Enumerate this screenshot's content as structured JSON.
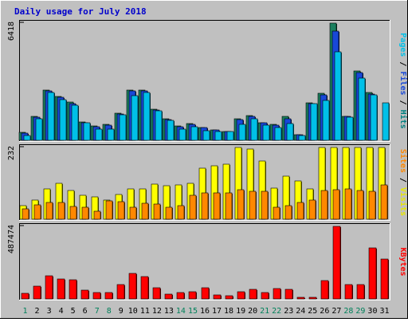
{
  "chart_data": {
    "type": "bar",
    "title": "Daily usage for July 2018",
    "categories": [
      "1",
      "2",
      "3",
      "4",
      "5",
      "6",
      "7",
      "8",
      "9",
      "10",
      "11",
      "12",
      "13",
      "14",
      "15",
      "16",
      "17",
      "18",
      "19",
      "20",
      "21",
      "22",
      "23",
      "24",
      "25",
      "26",
      "27",
      "28",
      "29",
      "30",
      "31"
    ],
    "weekend_days": [
      "1",
      "7",
      "8",
      "14",
      "15",
      "21",
      "22",
      "28",
      "29"
    ],
    "panels": [
      {
        "id": "hits_files_pages",
        "ymax_label": "6418",
        "ylim": [
          0,
          6418
        ],
        "right_label": {
          "parts": [
            "Pages",
            " / ",
            "Files",
            " / ",
            "Hits"
          ],
          "colors": [
            "#00c0e8",
            "#000000",
            "#1848d8",
            "#000000",
            "#008080"
          ]
        },
        "series": [
          {
            "name": "Hits",
            "color": "#1a7f5e",
            "values": [
              420,
              1320,
              2750,
              2400,
              2090,
              1020,
              780,
              870,
              1500,
              2750,
              2760,
              1700,
              1200,
              800,
              920,
              700,
              570,
              500,
              1170,
              1350,
              980,
              890,
              1300,
              300,
              2040,
              2590,
              6400,
              1330,
              3800,
              2620,
              0
            ]
          },
          {
            "name": "Files",
            "color": "#1848d8",
            "values": [
              400,
              1280,
              2700,
              2350,
              2000,
              960,
              740,
              830,
              1460,
              2700,
              2720,
              1650,
              1130,
              760,
              880,
              680,
              550,
              490,
              1120,
              1300,
              950,
              850,
              1200,
              300,
              2000,
              2500,
              6000,
              1300,
              3700,
              2550,
              0
            ]
          },
          {
            "name": "Pages",
            "color": "#00c0e8",
            "values": [
              280,
              1200,
              2600,
              2230,
              1900,
              940,
              620,
              620,
              1400,
              2440,
              2600,
              1620,
              1080,
              600,
              740,
              540,
              490,
              470,
              880,
              1160,
              840,
              680,
              920,
              280,
              1990,
              2200,
              4850,
              1250,
              3400,
              2480,
              2050
            ]
          }
        ]
      },
      {
        "id": "visits_sites",
        "ymax_label": "232",
        "ylim": [
          0,
          232
        ],
        "right_label": {
          "parts": [
            "Sites",
            " / ",
            "Visits"
          ],
          "colors": [
            "#ff8800",
            "#000000",
            "#e8e800"
          ]
        },
        "series": [
          {
            "name": "Visits",
            "color": "#ffff00",
            "values": [
              45,
              63,
              98,
              116,
              92,
              78,
              73,
              63,
              80,
              98,
              98,
              113,
              108,
              110,
              115,
              165,
              172,
              178,
              232,
              228,
              188,
              101,
              138,
              124,
              97,
              232,
              232,
              232,
              232,
              232,
              232
            ]
          },
          {
            "name": "Sites",
            "color": "#ff8800",
            "values": [
              33,
              46,
              53,
              53,
              41,
              38,
              27,
              60,
              58,
              38,
              51,
              48,
              38,
              44,
              78,
              84,
              85,
              84,
              95,
              91,
              90,
              38,
              43,
              53,
              62,
              93,
              95,
              97,
              92,
              89,
              112
            ]
          }
        ]
      },
      {
        "id": "kbytes",
        "ymax_label": "487474",
        "ylim": [
          0,
          487474
        ],
        "right_label": {
          "parts": [
            "KBytes"
          ],
          "colors": [
            "#ff0000"
          ]
        },
        "series": [
          {
            "name": "KBytes",
            "color": "#ff0000",
            "values": [
              35000,
              85000,
              157000,
              135000,
              128000,
              59000,
              45000,
              42000,
              95000,
              170000,
              148000,
              75000,
              33000,
              45000,
              48000,
              75000,
              25000,
              22000,
              48000,
              65000,
              42000,
              68000,
              65000,
              10000,
              12000,
              125000,
              487474,
              95000,
              95000,
              345000,
              270000
            ]
          }
        ]
      }
    ],
    "grid": false,
    "legend": "right-vertical-text"
  }
}
